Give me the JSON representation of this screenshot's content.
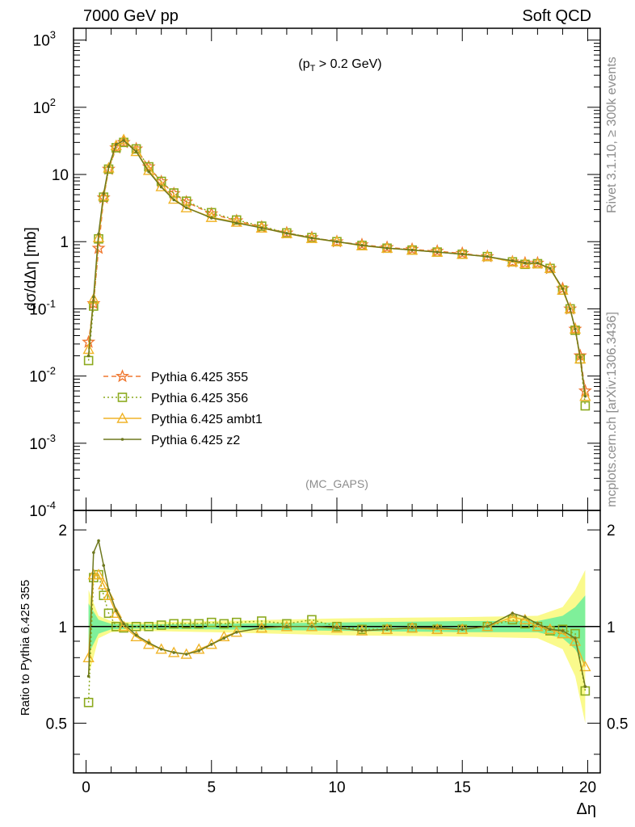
{
  "header": {
    "left": "7000 GeV pp",
    "right": "Soft QCD"
  },
  "side_labels": {
    "rivet": "Rivet 3.1.10, ≥ 300k events",
    "mcplots": "mcplots.cern.ch [arXiv:1306.3436]"
  },
  "chart_data": [
    {
      "type": "line",
      "panel": "main",
      "annotation": "(p_T > 0.2 GeV)",
      "analysis_tag": "(MC_GAPS)",
      "xlabel": "Δη",
      "ylabel": "dσ/dΔη [mb]",
      "yscale": "log",
      "xlim": [
        -0.5,
        20.5
      ],
      "ylim": [
        0.0001,
        1500
      ],
      "y_tick_labels": [
        "10^-4",
        "10^-3",
        "10^-2",
        "10^-1",
        "1",
        "10",
        "10^2",
        "10^3"
      ],
      "legend_position": "lower-left",
      "x": [
        0.1,
        0.3,
        0.5,
        0.7,
        0.9,
        1.2,
        1.5,
        2.0,
        2.5,
        3.0,
        3.5,
        4.0,
        5.0,
        6.0,
        7.0,
        8.0,
        9.0,
        10.0,
        11.0,
        12.0,
        13.0,
        14.0,
        15.0,
        16.0,
        17.0,
        17.5,
        18.0,
        18.5,
        19.0,
        19.3,
        19.5,
        19.7,
        19.9
      ],
      "series": [
        {
          "name": "Pythia 6.425 355",
          "color": "#f07830",
          "marker": "star",
          "dash": "dashed",
          "values": [
            0.032,
            0.12,
            0.8,
            4.5,
            12.0,
            25.0,
            30.0,
            24.0,
            13.0,
            7.8,
            5.2,
            3.9,
            2.6,
            2.05,
            1.65,
            1.35,
            1.15,
            1.0,
            0.9,
            0.82,
            0.77,
            0.72,
            0.67,
            0.6,
            0.5,
            0.48,
            0.48,
            0.4,
            0.2,
            0.1,
            0.05,
            0.02,
            0.006
          ]
        },
        {
          "name": "Pythia 6.425 356",
          "color": "#8caa1e",
          "marker": "open-square",
          "dash": "dotted",
          "values": [
            0.017,
            0.11,
            1.1,
            4.6,
            12.0,
            25.0,
            30.0,
            24.0,
            13.0,
            7.9,
            5.3,
            4.0,
            2.7,
            2.1,
            1.7,
            1.35,
            1.15,
            1.0,
            0.88,
            0.8,
            0.75,
            0.7,
            0.65,
            0.6,
            0.5,
            0.46,
            0.47,
            0.4,
            0.19,
            0.1,
            0.048,
            0.018,
            0.0036
          ]
        },
        {
          "name": "Pythia 6.425 ambt1",
          "color": "#f0b428",
          "marker": "open-triangle",
          "dash": "solid",
          "values": [
            0.025,
            0.14,
            1.15,
            4.8,
            12.5,
            27.0,
            33.0,
            22.0,
            11.5,
            6.6,
            4.3,
            3.2,
            2.3,
            1.95,
            1.6,
            1.32,
            1.12,
            1.0,
            0.87,
            0.8,
            0.75,
            0.7,
            0.65,
            0.6,
            0.5,
            0.47,
            0.47,
            0.4,
            0.19,
            0.1,
            0.05,
            0.018,
            0.005
          ]
        },
        {
          "name": "Pythia 6.425 z2",
          "color": "#6e781e",
          "marker": "dot",
          "dash": "solid",
          "values": [
            0.02,
            0.15,
            1.3,
            5.2,
            13.0,
            28.0,
            32.0,
            22.0,
            11.0,
            6.5,
            4.2,
            3.2,
            2.25,
            1.9,
            1.6,
            1.33,
            1.13,
            1.0,
            0.88,
            0.8,
            0.75,
            0.7,
            0.65,
            0.6,
            0.52,
            0.48,
            0.48,
            0.4,
            0.2,
            0.1,
            0.05,
            0.019,
            0.005
          ]
        }
      ]
    },
    {
      "type": "line",
      "panel": "ratio",
      "xlabel": "Δη",
      "ylabel": "Ratio to Pythia 6.425 355",
      "xlim": [
        -0.5,
        20.5
      ],
      "ylim": [
        0.35,
        2.3
      ],
      "x_ticks": [
        0,
        5,
        10,
        15,
        20
      ],
      "x_tick_labels": [
        "0",
        "5",
        "10",
        "15",
        "20"
      ],
      "y_ticks": [
        0.5,
        1,
        2
      ],
      "y_tick_labels": [
        "0.5",
        "1",
        "2"
      ],
      "reference_band": {
        "x": [
          0.1,
          0.5,
          1.0,
          2.0,
          5.0,
          10.0,
          15.0,
          18.0,
          19.0,
          19.5,
          19.9
        ],
        "inner_halfwidth": [
          0.18,
          0.05,
          0.02,
          0.015,
          0.02,
          0.03,
          0.04,
          0.04,
          0.08,
          0.15,
          0.25
        ],
        "outer_halfwidth": [
          0.3,
          0.08,
          0.04,
          0.03,
          0.04,
          0.06,
          0.07,
          0.08,
          0.15,
          0.3,
          0.5
        ],
        "inner_color": "#7ff09a",
        "outer_color": "#fafa8c"
      },
      "x": [
        0.1,
        0.3,
        0.5,
        0.7,
        0.9,
        1.2,
        1.5,
        2.0,
        2.5,
        3.0,
        3.5,
        4.0,
        4.5,
        5.0,
        5.5,
        6.0,
        7.0,
        8.0,
        9.0,
        10.0,
        11.0,
        12.0,
        13.0,
        14.0,
        15.0,
        16.0,
        17.0,
        17.5,
        18.0,
        18.5,
        19.0,
        19.5,
        19.9
      ],
      "series": [
        {
          "name": "Pythia 6.425 356",
          "color": "#8caa1e",
          "marker": "open-square",
          "values": [
            0.58,
            1.42,
            1.45,
            1.25,
            1.1,
            1.0,
            0.99,
            1.0,
            1.0,
            1.01,
            1.02,
            1.02,
            1.02,
            1.03,
            1.02,
            1.03,
            1.04,
            1.02,
            1.05,
            1.0,
            0.98,
            0.98,
            0.99,
            0.98,
            0.98,
            1.0,
            1.05,
            1.02,
            1.0,
            0.97,
            0.98,
            0.95,
            0.63
          ]
        },
        {
          "name": "Pythia 6.425 ambt1",
          "color": "#f0b428",
          "marker": "open-triangle",
          "values": [
            0.8,
            1.45,
            1.45,
            1.35,
            1.25,
            1.1,
            1.0,
            0.93,
            0.88,
            0.85,
            0.83,
            0.82,
            0.85,
            0.88,
            0.93,
            0.96,
            0.99,
            1.0,
            1.0,
            0.99,
            0.97,
            0.98,
            0.99,
            0.98,
            0.98,
            1.0,
            1.07,
            1.05,
            1.0,
            0.98,
            0.95,
            0.9,
            0.75
          ]
        },
        {
          "name": "Pythia 6.425 z2",
          "color": "#6e781e",
          "marker": "dot",
          "values": [
            0.7,
            1.7,
            1.85,
            1.55,
            1.3,
            1.12,
            1.02,
            0.94,
            0.89,
            0.85,
            0.83,
            0.82,
            0.84,
            0.88,
            0.92,
            0.96,
            0.99,
            1.0,
            1.0,
            0.99,
            0.97,
            0.98,
            0.99,
            0.99,
            0.98,
            1.0,
            1.1,
            1.07,
            1.02,
            0.98,
            0.97,
            0.92,
            0.65
          ]
        }
      ]
    }
  ]
}
